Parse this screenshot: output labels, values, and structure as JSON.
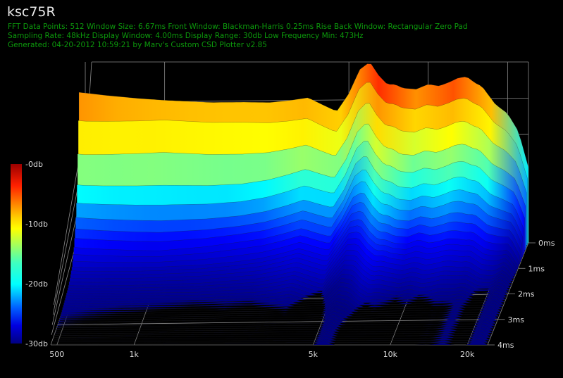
{
  "header": {
    "title": "ksc75R",
    "line1": "FFT Data Points: 512   Window Size: 6.67ms   Front Window: Blackman-Harris 0.25ms Rise   Back Window: Rectangular Zero Pad",
    "line2": "Sampling Rate: 48kHz   Display Window: 4.00ms   Display Range: 30db   Low Frequency Min: 473Hz",
    "line3": "Generated: 04-20-2012 10:59:21 by Marv's Custom CSD Plotter v2.85"
  },
  "chart_data": {
    "type": "waterfall",
    "x_scale": "log",
    "xlim": [
      473,
      24000
    ],
    "x_ticks": [
      500,
      1000,
      5000,
      10000,
      20000
    ],
    "x_tick_labels": [
      "500",
      "1k",
      "5k",
      "10k",
      "20k"
    ],
    "z_ticks": [
      0,
      1,
      2,
      3,
      4
    ],
    "z_tick_labels": [
      "0ms",
      "1ms",
      "2ms",
      "3ms",
      "4ms"
    ],
    "zlim_ms": [
      0,
      4
    ],
    "ylim_db": [
      -30,
      0
    ],
    "colorbar_ticks": [
      0,
      -10,
      -20,
      -30
    ],
    "colorbar_labels": [
      "-0db",
      "-10db",
      "-20db",
      "-30db"
    ],
    "colormap": [
      "#00008f",
      "#0000ff",
      "#00ffff",
      "#ffff00",
      "#ff0000",
      "#800000"
    ],
    "initial_response": {
      "freq_hz": [
        473,
        600,
        800,
        1000,
        1500,
        2000,
        2500,
        3000,
        3500,
        4000,
        4500,
        5000,
        5500,
        6000,
        6500,
        7000,
        7500,
        8000,
        9000,
        10000,
        11000,
        12000,
        13000,
        14000,
        15000,
        16000,
        18000,
        20000,
        22000,
        24000
      ],
      "level_db": [
        -4.5,
        -5.0,
        -5.5,
        -5.8,
        -6.2,
        -6.2,
        -6.3,
        -6.0,
        -5.6,
        -6.8,
        -7.8,
        -5.0,
        -1.2,
        0,
        -2.2,
        -3.6,
        -3.6,
        -4.2,
        -4.4,
        -3.6,
        -3.9,
        -3.3,
        -2.6,
        -2.4,
        -3.4,
        -4.0,
        -7.0,
        -8.5,
        -11.5,
        -17.5
      ]
    },
    "decay_time_ms": [
      0.0,
      0.1,
      0.2,
      0.3,
      0.5,
      0.75,
      1.0,
      1.5,
      2.0,
      2.5,
      3.0,
      3.5,
      4.0
    ],
    "decay_level_db": {
      "500": [
        -4.5,
        -8.5,
        -13.5,
        -18,
        -22,
        -25,
        -27,
        -28.5,
        -29,
        -29.5,
        -29.8,
        -30,
        -30
      ],
      "1000": [
        -5.8,
        -8.5,
        -13.5,
        -18.5,
        -23,
        -26,
        -27.5,
        -28.8,
        -29.5,
        -30,
        -30,
        -30,
        -30
      ],
      "2000": [
        -6.2,
        -9,
        -14,
        -18.5,
        -22.5,
        -25,
        -27,
        -28.5,
        -29.5,
        -30,
        -30,
        -30,
        -30
      ],
      "5000": [
        -5.0,
        -8,
        -11.5,
        -14.5,
        -18.5,
        -21.5,
        -23.5,
        -26,
        -28,
        -29.5,
        -30,
        -30,
        -30
      ],
      "6000": [
        0,
        -2.5,
        -5.5,
        -8.5,
        -13,
        -17,
        -20,
        -23.5,
        -26,
        -28,
        -29.5,
        -30,
        -30
      ],
      "8000": [
        -4.2,
        -7,
        -10.5,
        -14,
        -18.5,
        -22,
        -24.5,
        -27,
        -29,
        -30,
        -30,
        -30,
        -30
      ],
      "10000": [
        -3.6,
        -6.5,
        -10,
        -13.5,
        -18,
        -21.5,
        -24,
        -27,
        -29,
        -30,
        -30,
        -30,
        -30
      ],
      "14000": [
        -2.4,
        -5.5,
        -9,
        -12.5,
        -17,
        -21,
        -24,
        -27,
        -29,
        -30,
        -30,
        -30,
        -30
      ],
      "20000": [
        -8.5,
        -11,
        -14,
        -17,
        -21,
        -24,
        -26.5,
        -29,
        -30,
        -30,
        -30,
        -30,
        -30
      ],
      "24000": [
        -17.5,
        -19,
        -21,
        -23,
        -26,
        -28,
        -29.5,
        -30,
        -30,
        -30,
        -30,
        -30,
        -30
      ]
    }
  }
}
